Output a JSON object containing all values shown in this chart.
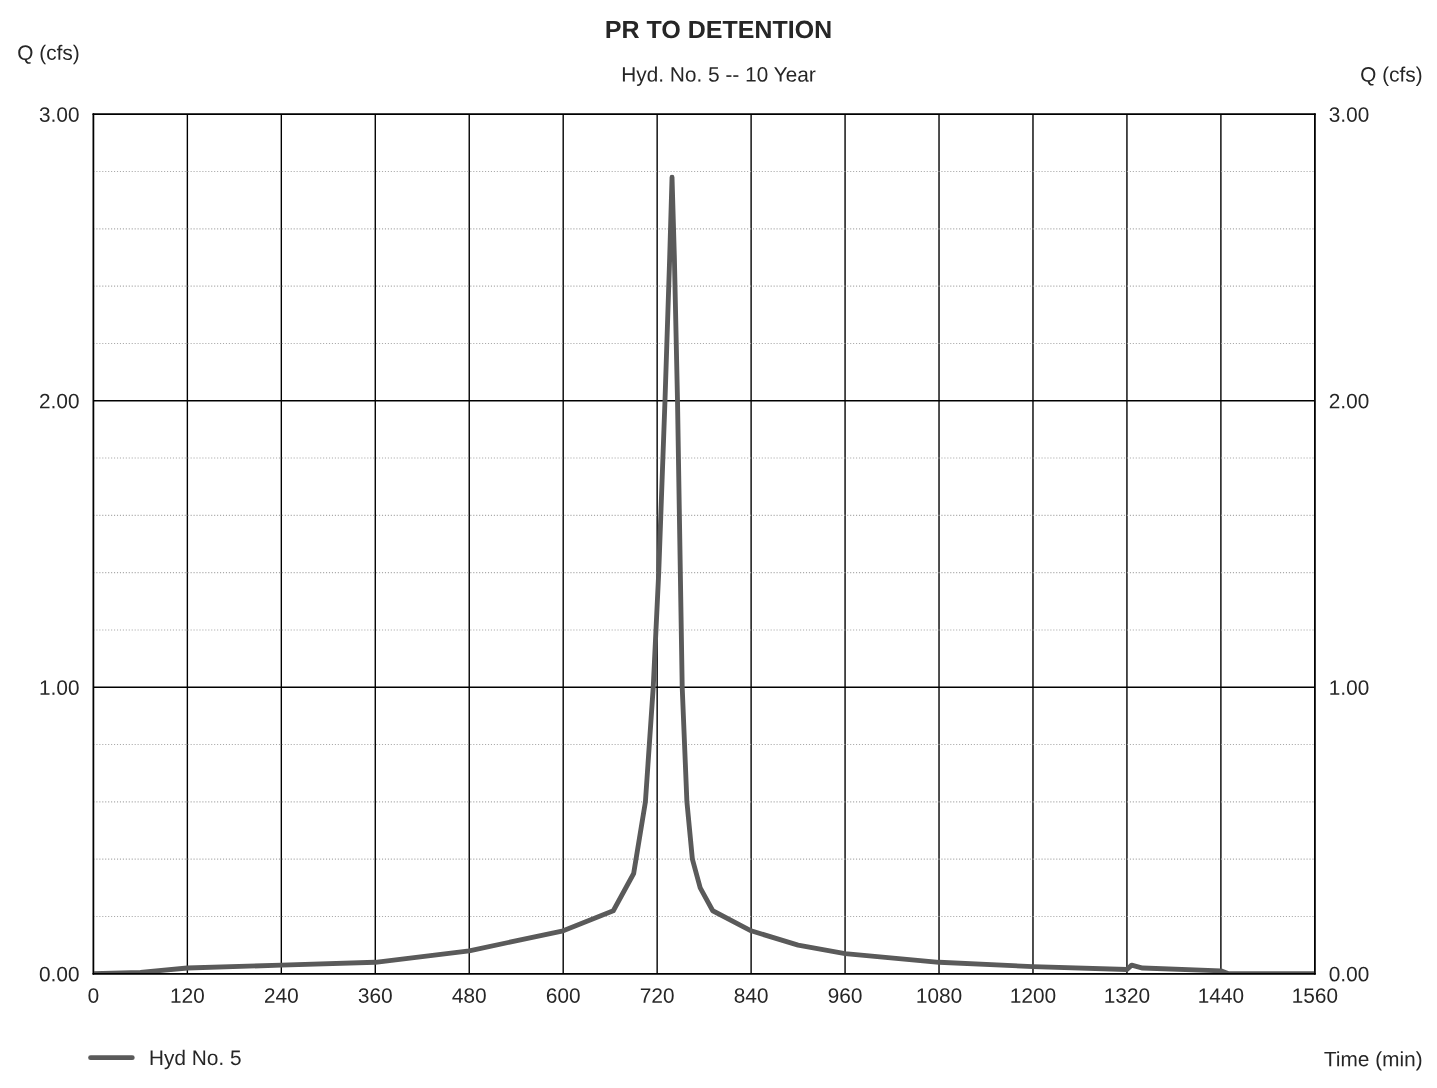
{
  "chart_data": {
    "type": "line",
    "title": "PR TO DETENTION",
    "subtitle": "Hyd. No. 5 -- 10 Year",
    "xlabel": "Time (min)",
    "ylabel": "Q (cfs)",
    "y2label": "Q (cfs)",
    "series": [
      {
        "name": "Hyd No. 5",
        "color": "#5a5a5a",
        "x": [
          0,
          60,
          120,
          240,
          360,
          480,
          600,
          664,
          690,
          705,
          715,
          722,
          730,
          736,
          739,
          742,
          746,
          752,
          758,
          765,
          775,
          791,
          840,
          900,
          960,
          1080,
          1200,
          1320,
          1326,
          1340,
          1440,
          1450,
          1560
        ],
        "values": [
          0.0,
          0.005,
          0.02,
          0.03,
          0.04,
          0.08,
          0.15,
          0.22,
          0.35,
          0.6,
          1.0,
          1.4,
          2.0,
          2.5,
          2.78,
          2.5,
          2.0,
          1.0,
          0.6,
          0.4,
          0.3,
          0.22,
          0.15,
          0.1,
          0.07,
          0.04,
          0.025,
          0.015,
          0.03,
          0.02,
          0.01,
          0.0,
          0.0
        ]
      }
    ],
    "xlim": [
      0,
      1560
    ],
    "xticks": [
      0,
      120,
      240,
      360,
      480,
      600,
      720,
      840,
      960,
      1080,
      1200,
      1320,
      1440,
      1560
    ],
    "ylim": [
      0,
      3
    ],
    "yticks": [
      {
        "value": 0,
        "label": "0.00"
      },
      {
        "value": 0.2,
        "label": null
      },
      {
        "value": 0.4,
        "label": null
      },
      {
        "value": 0.6,
        "label": null
      },
      {
        "value": 0.8,
        "label": null
      },
      {
        "value": 1,
        "label": "1.00"
      },
      {
        "value": 1.2,
        "label": null
      },
      {
        "value": 1.4,
        "label": null
      },
      {
        "value": 1.6,
        "label": null
      },
      {
        "value": 1.8,
        "label": null
      },
      {
        "value": 2,
        "label": "2.00"
      },
      {
        "value": 2.2,
        "label": null
      },
      {
        "value": 2.4,
        "label": null
      },
      {
        "value": 2.6,
        "label": null
      },
      {
        "value": 2.8,
        "label": null
      },
      {
        "value": 3,
        "label": "3.00"
      }
    ],
    "y2lim": [
      0,
      3
    ],
    "y2ticks": [
      {
        "value": 0,
        "label": "0.00"
      },
      {
        "value": 1,
        "label": "1.00"
      },
      {
        "value": 2,
        "label": "2.00"
      },
      {
        "value": 3,
        "label": "3.00"
      }
    ],
    "grid": true,
    "legend": "bottom left",
    "marker": "none",
    "line_style": "solid"
  }
}
